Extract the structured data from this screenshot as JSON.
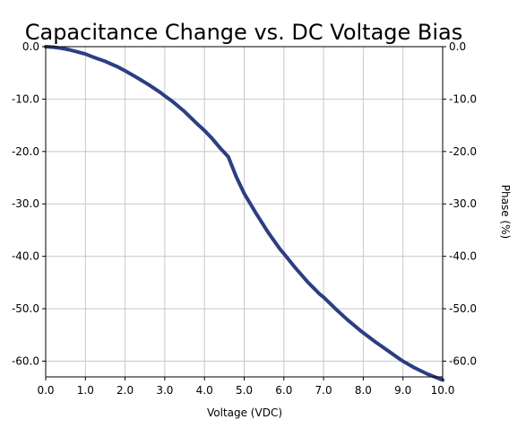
{
  "chart_data": {
    "type": "line",
    "title": "Capacitance Change vs. DC Voltage Bias",
    "xlabel": "Voltage (VDC)",
    "ylabel": "",
    "ylabel_right": "Phase (%)",
    "xlim": [
      0,
      10
    ],
    "ylim": [
      -63,
      0
    ],
    "xticks": [
      "0.0",
      "1.0",
      "2.0",
      "3.0",
      "4.0",
      "5.0",
      "6.0",
      "7.0",
      "8.0",
      "9.0",
      "10.0"
    ],
    "yticks": [
      "0.0",
      "-10.0",
      "-20.0",
      "-30.0",
      "-40.0",
      "-50.0",
      "-60.0"
    ],
    "grid": true,
    "line_color": "#2b3e85",
    "series": [
      {
        "x": [
          0,
          0.2,
          0.4,
          0.6,
          0.8,
          1.0,
          1.2,
          1.5,
          1.8,
          2.0,
          2.3,
          2.6,
          2.9,
          3.0,
          3.2,
          3.5,
          3.8,
          4.0,
          4.2,
          4.4,
          4.6,
          4.8,
          5.0,
          5.3,
          5.6,
          5.9,
          6.0,
          6.3,
          6.6,
          6.9,
          7.0,
          7.3,
          7.6,
          7.9,
          8.0,
          8.3,
          8.6,
          8.9,
          9.0,
          9.3,
          9.6,
          9.9,
          10.0
        ],
        "y": [
          0.0,
          -0.1,
          -0.3,
          -0.6,
          -1.0,
          -1.4,
          -2.0,
          -2.8,
          -3.8,
          -4.6,
          -5.9,
          -7.3,
          -8.8,
          -9.4,
          -10.5,
          -12.4,
          -14.6,
          -16.0,
          -17.6,
          -19.4,
          -21.0,
          -24.8,
          -28.0,
          -31.8,
          -35.4,
          -38.6,
          -39.5,
          -42.3,
          -44.9,
          -47.2,
          -47.8,
          -50.0,
          -52.1,
          -54.0,
          -54.6,
          -56.3,
          -57.9,
          -59.5,
          -60.0,
          -61.3,
          -62.4,
          -63.3,
          -63.6
        ]
      }
    ]
  }
}
